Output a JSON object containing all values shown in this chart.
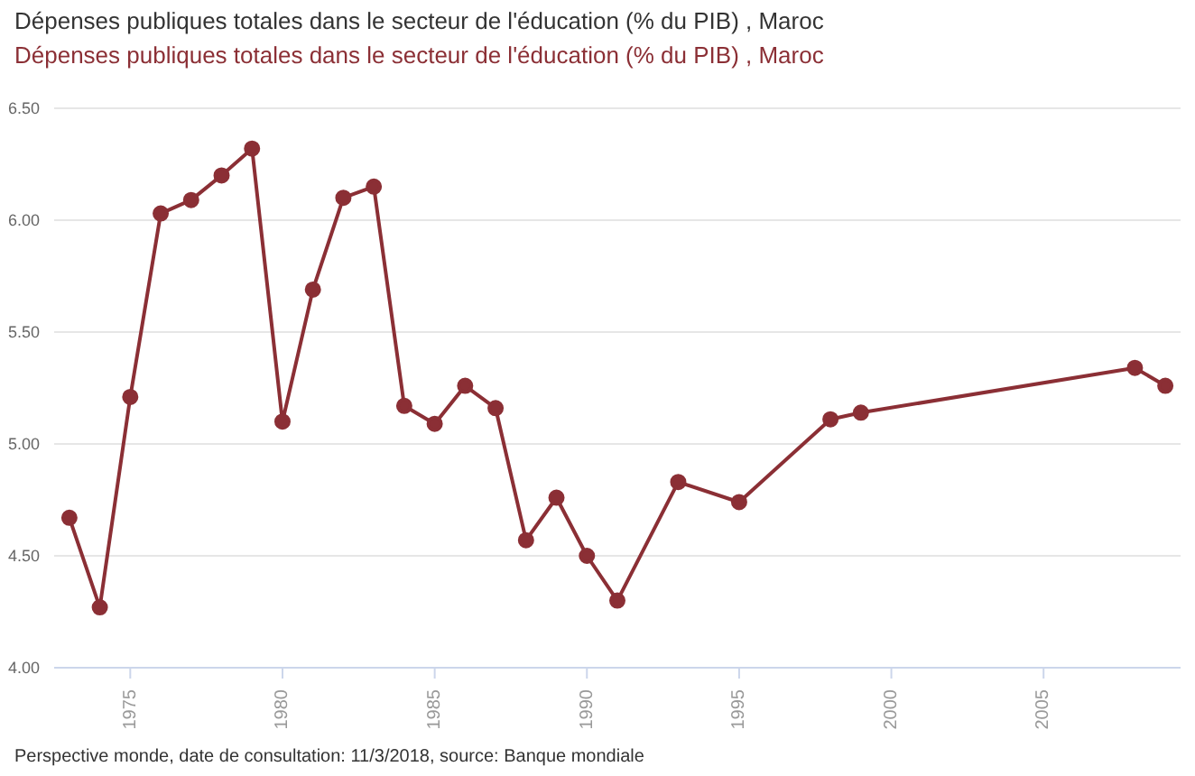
{
  "chart_data": {
    "type": "line",
    "title": "Dépenses publiques totales dans le secteur de l'éducation (% du PIB) , Maroc",
    "subtitle": "Dépenses publiques totales dans le secteur de l'éducation (% du PIB) , Maroc",
    "x": [
      1973,
      1974,
      1975,
      1976,
      1977,
      1978,
      1979,
      1980,
      1981,
      1982,
      1983,
      1984,
      1985,
      1986,
      1987,
      1988,
      1989,
      1990,
      1991,
      1993,
      1995,
      1998,
      1999,
      2008,
      2009
    ],
    "series": [
      {
        "color": "#8b2f35",
        "values": [
          4.67,
          4.27,
          5.21,
          6.03,
          6.09,
          6.2,
          6.32,
          5.1,
          5.69,
          6.1,
          6.15,
          5.17,
          5.09,
          5.26,
          5.16,
          4.57,
          4.76,
          4.5,
          4.3,
          4.83,
          4.74,
          5.11,
          5.14,
          5.34,
          5.26
        ]
      }
    ],
    "xlim": [
      1972.5,
      2009.5
    ],
    "xticks": [
      1975,
      1980,
      1985,
      1990,
      1995,
      2000,
      2005
    ],
    "ylim": [
      4,
      6.5
    ],
    "yticks": [
      {
        "value": 4,
        "label": "4.00"
      },
      {
        "value": 4.5,
        "label": "4.50"
      },
      {
        "value": 5,
        "label": "5.00"
      },
      {
        "value": 5.5,
        "label": "5.50"
      },
      {
        "value": 6,
        "label": "6.00"
      },
      {
        "value": 6.5,
        "label": "6.50"
      }
    ],
    "grid": "y",
    "marker": "circle",
    "line_style": "solid",
    "legend": false,
    "annotations": [
      "Perspective monde, date de consultation: 11/3/2018, source: Banque mondiale"
    ]
  }
}
